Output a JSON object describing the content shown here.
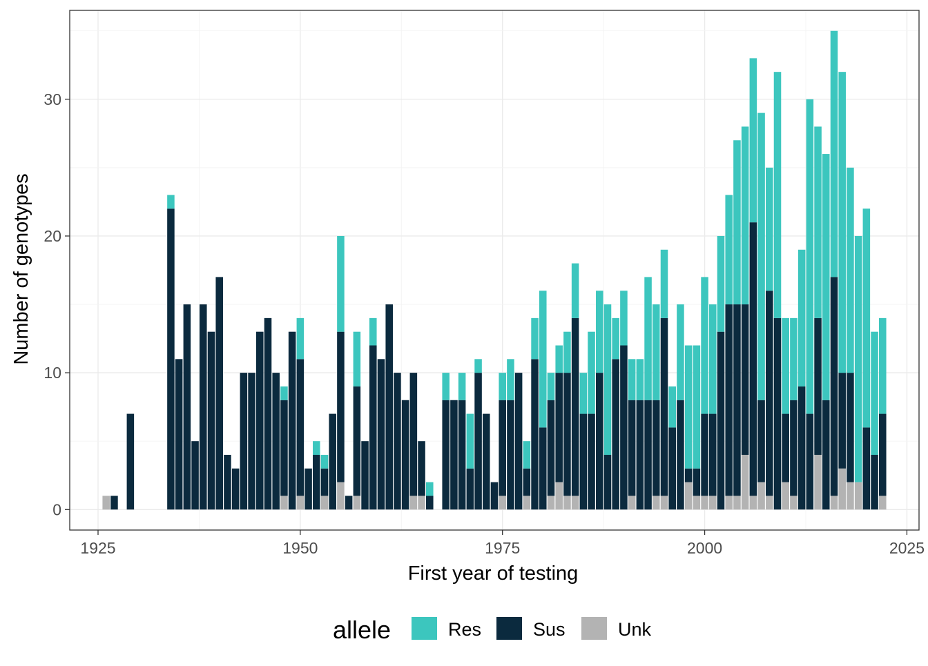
{
  "chart_data": {
    "type": "bar",
    "stacked": true,
    "title": "",
    "xlabel": "First year of testing",
    "ylabel": "Number of genotypes",
    "xlim": [
      1921.5,
      2026.5
    ],
    "ylim": [
      -1.5,
      36.5
    ],
    "x_ticks": [
      1925,
      1950,
      1975,
      2000,
      2025
    ],
    "y_ticks": [
      0,
      10,
      20,
      30
    ],
    "grid": true,
    "legend": {
      "title": "allele",
      "position": "bottom"
    },
    "colors": {
      "Res": "#3CC6BE",
      "Sus": "#0B2A3E",
      "Unk": "#B3B3B3"
    },
    "x": [
      1926,
      1927,
      1929,
      1934,
      1935,
      1936,
      1937,
      1938,
      1939,
      1940,
      1941,
      1942,
      1943,
      1944,
      1945,
      1946,
      1947,
      1948,
      1949,
      1950,
      1951,
      1952,
      1953,
      1954,
      1955,
      1956,
      1957,
      1958,
      1959,
      1960,
      1961,
      1962,
      1963,
      1964,
      1965,
      1966,
      1968,
      1969,
      1970,
      1971,
      1972,
      1973,
      1974,
      1975,
      1976,
      1977,
      1978,
      1979,
      1980,
      1981,
      1982,
      1983,
      1984,
      1985,
      1986,
      1987,
      1988,
      1989,
      1990,
      1991,
      1992,
      1993,
      1994,
      1995,
      1996,
      1997,
      1998,
      1999,
      2000,
      2001,
      2002,
      2003,
      2004,
      2005,
      2006,
      2007,
      2008,
      2009,
      2010,
      2011,
      2012,
      2013,
      2014,
      2015,
      2016,
      2017,
      2018,
      2019,
      2020,
      2021,
      2022
    ],
    "series": [
      {
        "name": "Unk",
        "values": [
          1,
          0,
          0,
          0,
          0,
          0,
          0,
          0,
          0,
          0,
          0,
          0,
          0,
          0,
          0,
          0,
          0,
          1,
          0,
          1,
          0,
          0,
          1,
          0,
          2,
          0,
          1,
          0,
          0,
          0,
          0,
          0,
          0,
          1,
          1,
          0,
          0,
          0,
          0,
          0,
          0,
          0,
          0,
          1,
          0,
          0,
          1,
          0,
          0,
          1,
          2,
          1,
          1,
          0,
          0,
          0,
          0,
          0,
          0,
          1,
          0,
          0,
          1,
          1,
          0,
          0,
          2,
          1,
          1,
          1,
          0,
          1,
          1,
          4,
          1,
          2,
          1,
          0,
          2,
          1,
          0,
          0,
          4,
          0,
          1,
          3,
          2,
          2,
          0,
          0,
          1
        ]
      },
      {
        "name": "Sus",
        "values": [
          0,
          1,
          7,
          22,
          11,
          15,
          5,
          15,
          13,
          17,
          4,
          3,
          10,
          10,
          13,
          14,
          10,
          7,
          13,
          10,
          3,
          4,
          2,
          7,
          11,
          1,
          8,
          5,
          12,
          11,
          15,
          10,
          8,
          9,
          4,
          1,
          8,
          8,
          8,
          3,
          10,
          7,
          2,
          7,
          8,
          10,
          2,
          11,
          6,
          7,
          8,
          9,
          13,
          7,
          7,
          10,
          4,
          11,
          12,
          7,
          8,
          8,
          7,
          13,
          6,
          8,
          1,
          2,
          6,
          6,
          13,
          14,
          14,
          11,
          20,
          6,
          15,
          14,
          5,
          7,
          9,
          7,
          10,
          8,
          16,
          7,
          8,
          0,
          6,
          4,
          6
        ]
      },
      {
        "name": "Res",
        "values": [
          0,
          0,
          0,
          1,
          0,
          0,
          0,
          0,
          0,
          0,
          0,
          0,
          0,
          0,
          0,
          0,
          0,
          1,
          0,
          3,
          0,
          1,
          1,
          0,
          7,
          0,
          4,
          0,
          2,
          0,
          0,
          0,
          0,
          0,
          0,
          1,
          2,
          0,
          2,
          4,
          1,
          0,
          0,
          2,
          3,
          0,
          2,
          3,
          10,
          2,
          2,
          3,
          4,
          3,
          6,
          6,
          11,
          3,
          4,
          3,
          3,
          9,
          7,
          5,
          3,
          7,
          9,
          9,
          10,
          8,
          7,
          8,
          12,
          13,
          12,
          21,
          9,
          18,
          7,
          6,
          10,
          23,
          14,
          18,
          18,
          22,
          15,
          18,
          16,
          9,
          7
        ]
      }
    ]
  }
}
